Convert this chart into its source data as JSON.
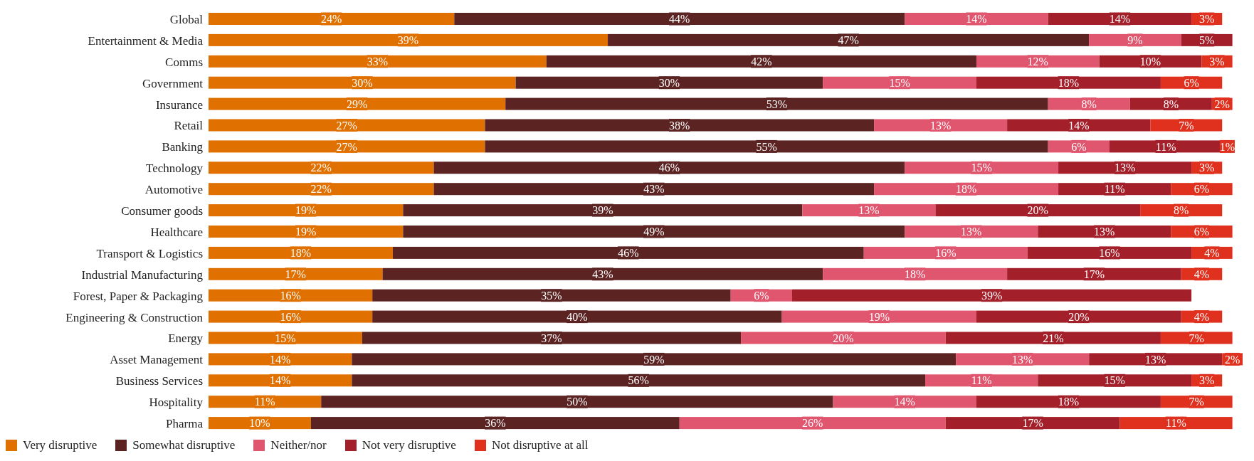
{
  "chart_data": {
    "type": "bar",
    "orientation": "horizontal",
    "stacked": true,
    "legend": "bottom",
    "categories": [
      "Global",
      "Entertainment & Media",
      "Comms",
      "Government",
      "Insurance",
      "Retail",
      "Banking",
      "Technology",
      "Automotive",
      "Consumer goods",
      "Healthcare",
      "Transport & Logistics",
      "Industrial Manufacturing",
      "Forest, Paper & Packaging",
      "Engineering & Construction",
      "Energy",
      "Asset Management",
      "Business Services",
      "Hospitality",
      "Pharma"
    ],
    "series": [
      {
        "name": "Very disruptive",
        "color": "#e07000",
        "values": [
          24,
          39,
          33,
          30,
          29,
          27,
          27,
          22,
          22,
          19,
          19,
          18,
          17,
          16,
          16,
          15,
          14,
          14,
          11,
          10
        ],
        "value_labels": [
          "24%",
          "39%",
          "33%",
          "30%",
          "29%",
          "27%",
          "27%",
          "22%",
          "22%",
          "19%",
          "19%",
          "18%",
          "17%",
          "16%",
          "16%",
          "15%",
          "14%",
          "14%",
          "11%",
          "10%"
        ]
      },
      {
        "name": "Somewhat disruptive",
        "color": "#5c2323",
        "values": [
          44,
          47,
          42,
          30,
          53,
          38,
          55,
          46,
          43,
          39,
          49,
          46,
          43,
          35,
          40,
          37,
          59,
          56,
          50,
          36
        ],
        "value_labels": [
          "44%",
          "47%",
          "42%",
          "30%",
          "53%",
          "38%",
          "55%",
          "46%",
          "43%",
          "39%",
          "49%",
          "46%",
          "43%",
          "35%",
          "40%",
          "37%",
          "59%",
          "56%",
          "50%",
          "36%"
        ]
      },
      {
        "name": "Neither/nor",
        "color": "#e0566e",
        "values": [
          14,
          9,
          12,
          15,
          8,
          13,
          6,
          15,
          18,
          13,
          13,
          16,
          18,
          6,
          19,
          20,
          13,
          11,
          14,
          26
        ],
        "value_labels": [
          "14%",
          "9%",
          "12%",
          "15%",
          "8%",
          "13%",
          "6%",
          "15%",
          "18%",
          "13%",
          "13%",
          "16%",
          "18%",
          "6%",
          "19%",
          "20%",
          "13%",
          "11%",
          "14%",
          "26%"
        ]
      },
      {
        "name": "Not very disruptive",
        "color": "#a3202a",
        "values": [
          14,
          5,
          10,
          18,
          8,
          14,
          11,
          13,
          11,
          20,
          13,
          16,
          17,
          39,
          20,
          21,
          13,
          15,
          18,
          17
        ],
        "value_labels": [
          "14%",
          "5%",
          "10%",
          "18%",
          "8%",
          "14%",
          "11%",
          "13%",
          "11%",
          "20%",
          "13%",
          "16%",
          "17%",
          "39%",
          "20%",
          "21%",
          "13%",
          "15%",
          "18%",
          "17%"
        ]
      },
      {
        "name": "Not disruptive at all",
        "color": "#e0301e",
        "values": [
          3,
          null,
          3,
          6,
          2,
          7,
          1,
          3,
          6,
          8,
          6,
          4,
          4,
          null,
          4,
          7,
          2,
          3,
          7,
          11
        ],
        "value_labels": [
          "3%",
          null,
          "3%",
          "6%",
          "2%",
          "7%",
          "1%",
          "3%",
          "6%",
          "8%",
          "6%",
          "4%",
          "4%",
          null,
          "4%",
          "7%",
          "2%",
          "3%",
          "7%",
          "11%"
        ]
      }
    ]
  }
}
